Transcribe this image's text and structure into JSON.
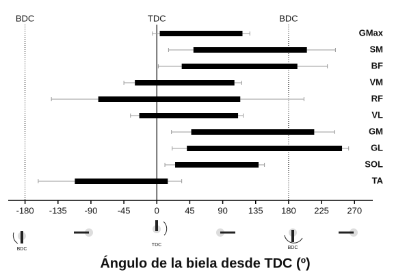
{
  "chart_data": {
    "type": "floating-bar",
    "x_label": "Ángulo de la biela desde TDC (º)",
    "categories": [
      "GMax",
      "SM",
      "BF",
      "VM",
      "RF",
      "VL",
      "GM",
      "GL",
      "SOL",
      "TA"
    ],
    "start": [
      4,
      50,
      34,
      -30,
      -80,
      -24,
      47,
      41,
      25,
      -112
    ],
    "end": [
      117,
      205,
      192,
      106,
      114,
      111,
      215,
      253,
      139,
      15
    ],
    "start_sd": [
      10,
      34,
      32,
      15,
      64,
      12,
      27,
      20,
      14,
      50
    ],
    "end_sd": [
      10,
      39,
      41,
      10,
      87,
      7,
      28,
      9,
      8,
      19
    ],
    "color": "#000000",
    "xlim": [
      -203,
      295
    ],
    "xticks": [
      -180,
      -135,
      -90,
      -45,
      0,
      45,
      90,
      135,
      180,
      225,
      270
    ],
    "reference_lines": [
      {
        "value": -180,
        "label": "BDC",
        "style": "dotted"
      },
      {
        "value": 0,
        "label": "TDC",
        "style": "solid"
      },
      {
        "value": 180,
        "label": "BDC",
        "style": "dotted"
      }
    ],
    "crank_labels": [
      "BDC",
      "TDC",
      "BDC"
    ]
  }
}
